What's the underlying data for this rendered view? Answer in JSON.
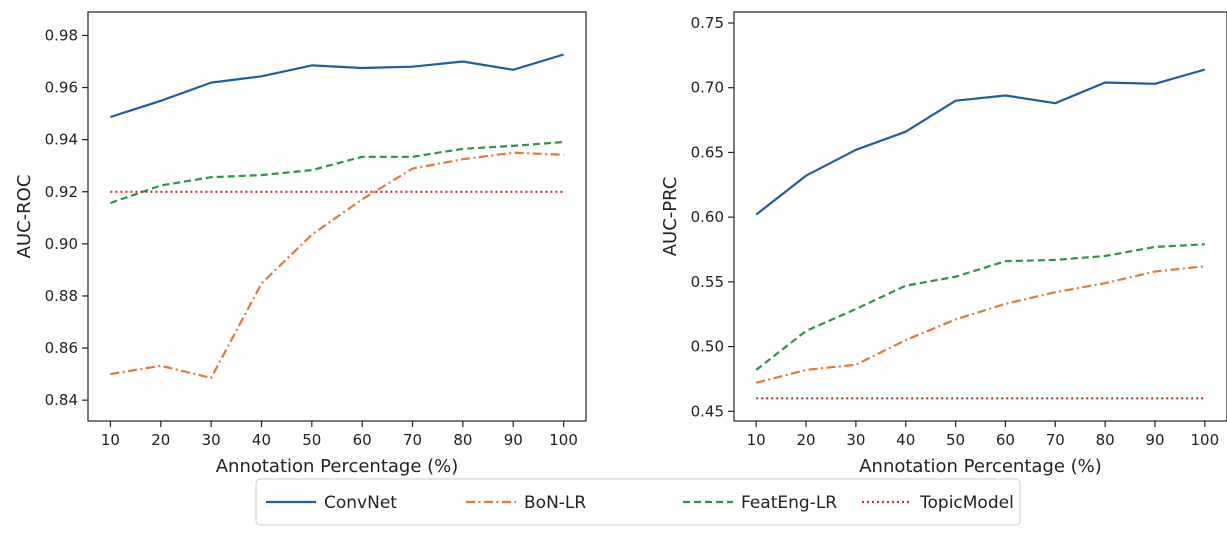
{
  "chart_data": [
    {
      "type": "line",
      "xlabel": "Annotation Percentage (%)",
      "ylabel": "AUC-ROC",
      "x": [
        10,
        20,
        30,
        40,
        50,
        60,
        70,
        80,
        90,
        100
      ],
      "xticks": [
        "10",
        "20",
        "30",
        "40",
        "50",
        "60",
        "70",
        "80",
        "90",
        "100"
      ],
      "ylim": [
        0.832,
        0.989
      ],
      "yticks": [
        "0.84",
        "0.86",
        "0.88",
        "0.90",
        "0.92",
        "0.94",
        "0.96",
        "0.98"
      ],
      "series": [
        {
          "name": "ConvNet",
          "values": [
            0.9487,
            0.9549,
            0.9619,
            0.9643,
            0.9685,
            0.9675,
            0.968,
            0.97,
            0.9668,
            0.9727
          ]
        },
        {
          "name": "BoN-LR",
          "values": [
            0.85,
            0.8532,
            0.8485,
            0.8848,
            0.9035,
            0.9171,
            0.9289,
            0.9325,
            0.935,
            0.9342
          ]
        },
        {
          "name": "FeatEng-LR",
          "values": [
            0.9157,
            0.9224,
            0.9256,
            0.9264,
            0.9283,
            0.9334,
            0.9334,
            0.9365,
            0.9376,
            0.9391
          ]
        },
        {
          "name": "TopicModel",
          "values": [
            0.92,
            0.92,
            0.92,
            0.92,
            0.92,
            0.92,
            0.92,
            0.92,
            0.92,
            0.92
          ]
        }
      ]
    },
    {
      "type": "line",
      "xlabel": "Annotation Percentage (%)",
      "ylabel": "AUC-PRC",
      "x": [
        10,
        20,
        30,
        40,
        50,
        60,
        70,
        80,
        90,
        100
      ],
      "xticks": [
        "10",
        "20",
        "30",
        "40",
        "50",
        "60",
        "70",
        "80",
        "90",
        "100"
      ],
      "ylim": [
        0.4425,
        0.7585
      ],
      "yticks": [
        "0.45",
        "0.50",
        "0.55",
        "0.60",
        "0.65",
        "0.70",
        "0.75"
      ],
      "series": [
        {
          "name": "ConvNet",
          "values": [
            0.602,
            0.632,
            0.652,
            0.666,
            0.69,
            0.694,
            0.688,
            0.704,
            0.703,
            0.714
          ]
        },
        {
          "name": "BoN-LR",
          "values": [
            0.472,
            0.482,
            0.486,
            0.505,
            0.521,
            0.533,
            0.542,
            0.549,
            0.558,
            0.562
          ]
        },
        {
          "name": "FeatEng-LR",
          "values": [
            0.482,
            0.512,
            0.529,
            0.547,
            0.554,
            0.566,
            0.567,
            0.57,
            0.577,
            0.579
          ]
        },
        {
          "name": "TopicModel",
          "values": [
            0.46,
            0.46,
            0.46,
            0.46,
            0.46,
            0.46,
            0.46,
            0.46,
            0.46,
            0.46
          ]
        }
      ]
    }
  ],
  "legend": {
    "placement": "bottom-center",
    "items": [
      {
        "label": "ConvNet",
        "color": "#1f5f9e",
        "dash": "solid"
      },
      {
        "label": "BoN-LR",
        "color": "#e07a36",
        "dash": "dashdot"
      },
      {
        "label": "FeatEng-LR",
        "color": "#2a9447",
        "dash": "dashed"
      },
      {
        "label": "TopicModel",
        "color": "#c43030",
        "dash": "dotted"
      }
    ]
  }
}
